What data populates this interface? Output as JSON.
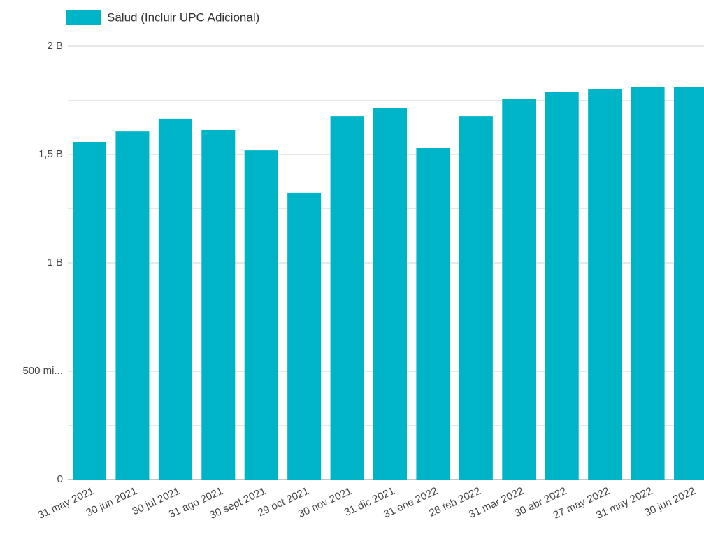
{
  "chart_data": {
    "type": "bar",
    "legend": "Salud (Incluir UPC Adicional)",
    "color": "#00b4c8",
    "categories": [
      "31 may 2021",
      "30 jun 2021",
      "30 jul 2021",
      "31 ago 2021",
      "30 sept 2021",
      "29 oct 2021",
      "30 nov 2021",
      "31 dic 2021",
      "31 ene 2022",
      "28 feb 2022",
      "31 mar 2022",
      "30 abr 2022",
      "27 may 2022",
      "31 may 2022",
      "30 jun 2022"
    ],
    "values": [
      1558000000,
      1606000000,
      1665000000,
      1613000000,
      1519000000,
      1323000000,
      1677000000,
      1713000000,
      1529000000,
      1677000000,
      1758000000,
      1790000000,
      1803000000,
      1813000000,
      1810000000
    ],
    "ylim": [
      0,
      2000000000
    ],
    "yticks": [
      0,
      {
        "value": 500000000,
        "label": "500 mi..."
      },
      {
        "value": 1000000000,
        "label": "1 B"
      },
      {
        "value": 1500000000,
        "label": "1,5 B"
      },
      {
        "value": 2000000000,
        "label": "2 B"
      }
    ],
    "minor_yticks": [
      250000000,
      750000000,
      1250000000,
      1750000000
    ],
    "grid": true
  }
}
